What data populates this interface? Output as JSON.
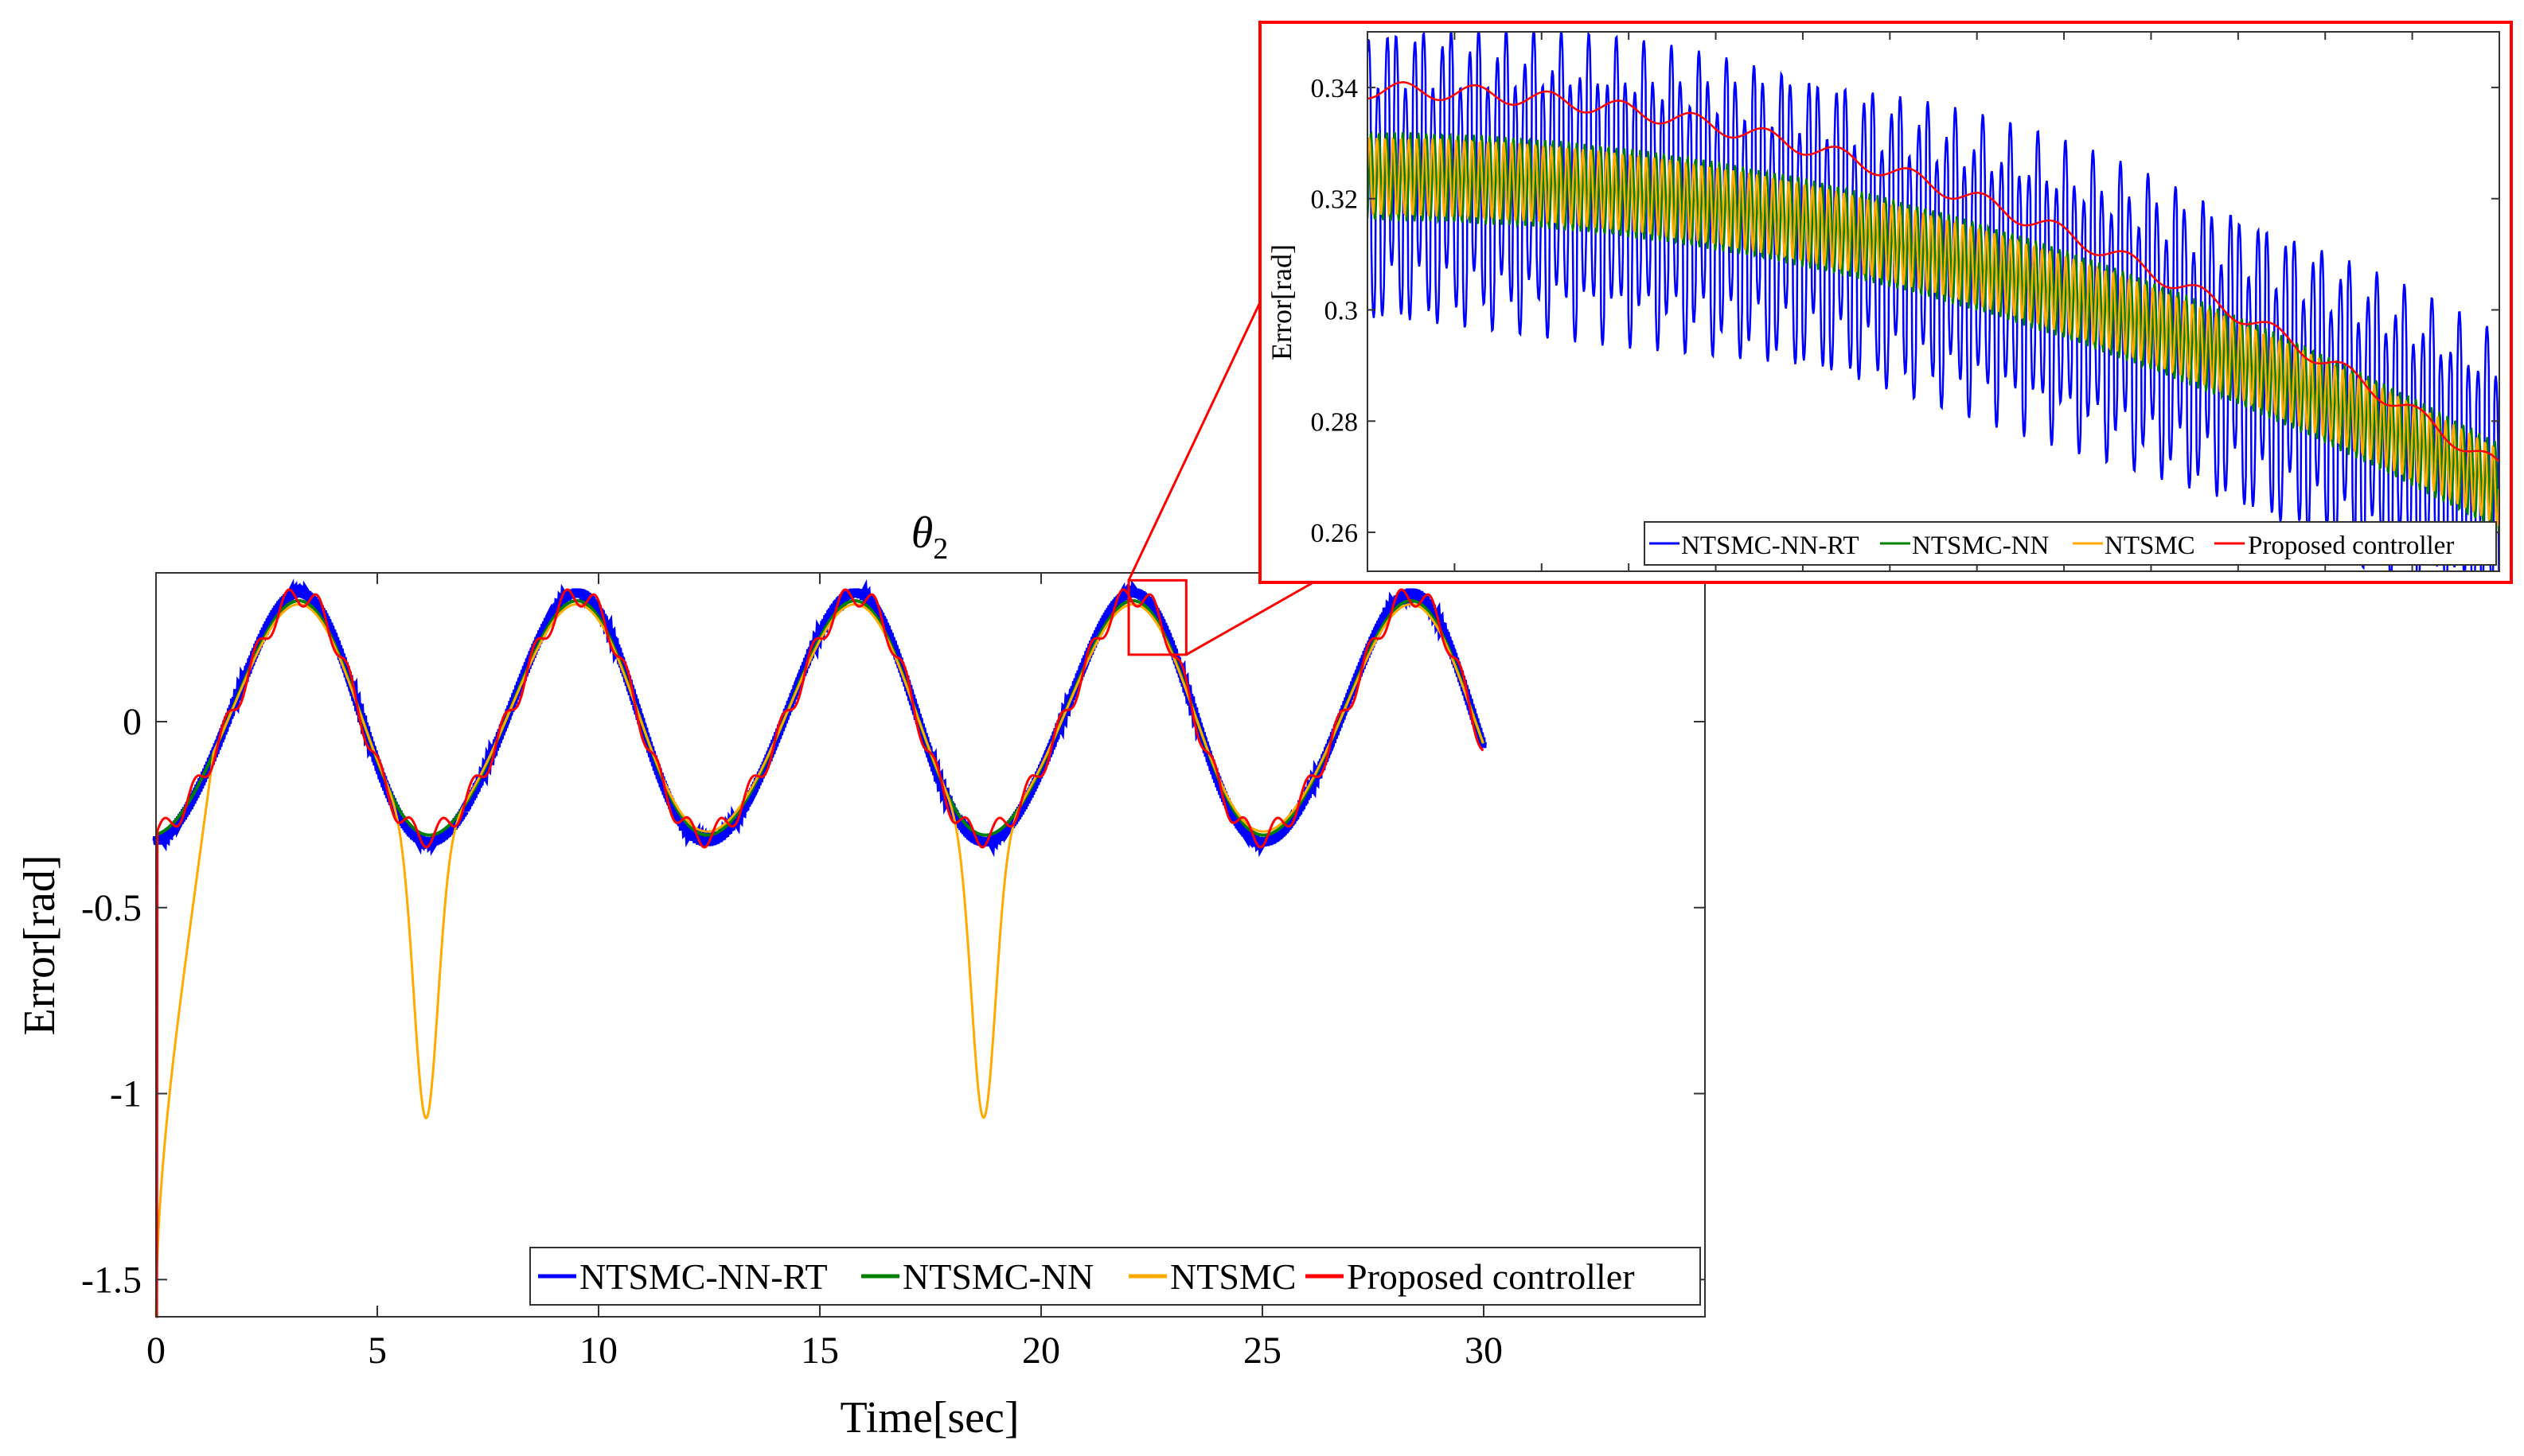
{
  "chart_data": [
    {
      "id": "main",
      "type": "line",
      "title": "θ",
      "title_subscript": "2",
      "xlabel": "Time[sec]",
      "ylabel": "Error[rad]",
      "xlim": [
        0,
        35
      ],
      "ylim": [
        -1.6,
        0.4
      ],
      "xticks": [
        0,
        5,
        10,
        15,
        20,
        25,
        30
      ],
      "xtick_labels": [
        "0",
        "5",
        "10",
        "15",
        "20",
        "25",
        "30"
      ],
      "yticks": [
        -1.5,
        -1,
        -0.5,
        0
      ],
      "ytick_labels": [
        "-1.5",
        "-1",
        "-0.5",
        "0"
      ],
      "legend_position": "bottom-right",
      "series": [
        {
          "name": "NTSMC-NN-RT",
          "color": "#0000ff"
        },
        {
          "name": "NTSMC-NN",
          "color": "#008000"
        },
        {
          "name": "NTSMC",
          "color": "#ffaa00"
        },
        {
          "name": "Proposed controller",
          "color": "#ff0000"
        }
      ],
      "signal_model": {
        "description": "sinusoidal tracking error, period 2π s, amplitude ~0.32 rad",
        "period_sec": 6.283,
        "amplitude": 0.32,
        "initial_error": -1.6,
        "ntsmc_dips": [
          {
            "t": 6.1,
            "min": -1.07
          },
          {
            "t": 18.7,
            "min": -1.07
          }
        ]
      }
    },
    {
      "id": "inset",
      "type": "line",
      "title": "",
      "xlabel": "",
      "ylabel": "Error[rad]",
      "xlim": [
        21.98,
        23.28
      ],
      "ylim": [
        0.253,
        0.35
      ],
      "yticks": [
        0.26,
        0.28,
        0.3,
        0.32,
        0.34
      ],
      "ytick_labels": [
        "0.26",
        "0.28",
        "0.3",
        "0.32",
        "0.34"
      ],
      "legend_position": "bottom",
      "zoom_box": {
        "x_range": [
          21.98,
          23.28
        ],
        "y_range": [
          0.18,
          0.38
        ]
      },
      "series": [
        {
          "name": "NTSMC-NN-RT",
          "color": "#0000ff"
        },
        {
          "name": "NTSMC-NN",
          "color": "#008000"
        },
        {
          "name": "NTSMC",
          "color": "#ffaa00"
        },
        {
          "name": "Proposed controller",
          "color": "#ff0000"
        }
      ]
    }
  ]
}
